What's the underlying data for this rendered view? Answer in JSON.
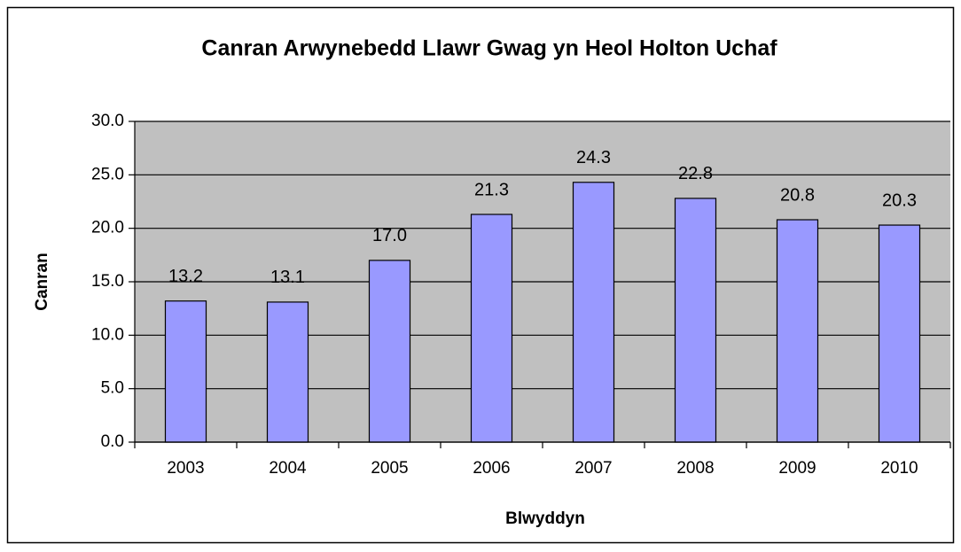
{
  "chart_data": {
    "type": "bar",
    "title": "Canran Arwynebedd Llawr Gwag yn Heol Holton Uchaf",
    "x_label": "Blwyddyn",
    "y_label": "Canran",
    "categories": [
      "2003",
      "2004",
      "2005",
      "2006",
      "2007",
      "2008",
      "2009",
      "2010"
    ],
    "values": [
      13.2,
      13.1,
      17.0,
      21.3,
      24.3,
      22.8,
      20.8,
      20.3
    ],
    "value_labels": [
      "13.2",
      "13.1",
      "17.0",
      "21.3",
      "24.3",
      "22.8",
      "20.8",
      "20.3"
    ],
    "color": "#9999ff",
    "ylim": [
      0,
      30
    ],
    "yticks": [
      {
        "value": 0,
        "label": "0.0"
      },
      {
        "value": 5,
        "label": "5.0"
      },
      {
        "value": 10,
        "label": "10.0"
      },
      {
        "value": 15,
        "label": "15.0"
      },
      {
        "value": 20,
        "label": "20.0"
      },
      {
        "value": 25,
        "label": "25.0"
      },
      {
        "value": 30,
        "label": "30.0"
      }
    ],
    "grid": true
  }
}
